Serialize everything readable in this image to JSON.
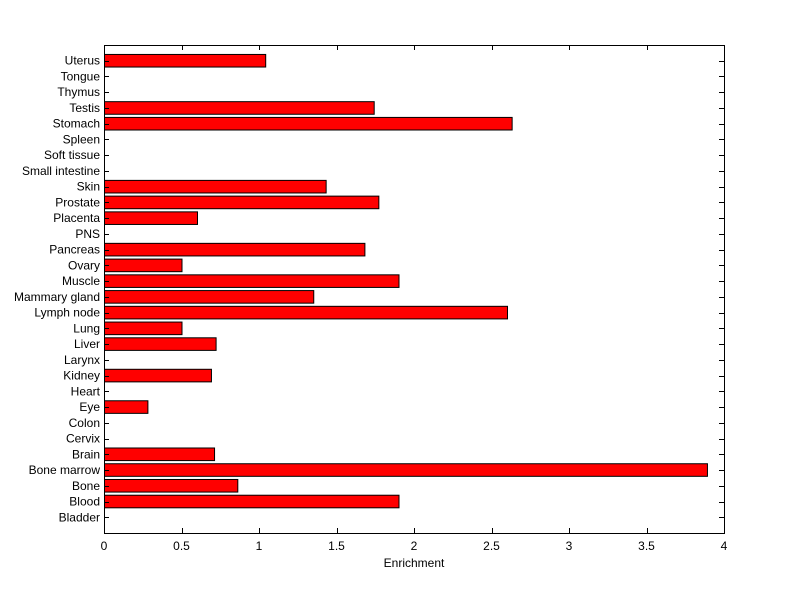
{
  "chart_data": {
    "type": "bar",
    "orientation": "horizontal",
    "title": "",
    "xlabel": "Enrichment",
    "ylabel": "",
    "xlim": [
      0,
      4
    ],
    "xticks": [
      "0",
      "0.5",
      "1",
      "1.5",
      "2",
      "2.5",
      "3",
      "3.5",
      "4"
    ],
    "grid": false,
    "bar_color": "#ff0000",
    "bar_edge_color": "#000000",
    "categories": [
      "Uterus",
      "Tongue",
      "Thymus",
      "Testis",
      "Stomach",
      "Spleen",
      "Soft tissue",
      "Small intestine",
      "Skin",
      "Prostate",
      "Placenta",
      "PNS",
      "Pancreas",
      "Ovary",
      "Muscle",
      "Mammary gland",
      "Lymph node",
      "Lung",
      "Liver",
      "Larynx",
      "Kidney",
      "Heart",
      "Eye",
      "Colon",
      "Cervix",
      "Brain",
      "Bone marrow",
      "Bone",
      "Blood",
      "Bladder"
    ],
    "values": [
      1.04,
      0,
      0,
      1.74,
      2.63,
      0,
      0,
      0,
      1.43,
      1.77,
      0.6,
      0,
      1.68,
      0.5,
      1.9,
      1.35,
      2.6,
      0.5,
      0.72,
      0,
      0.69,
      0,
      0.28,
      0,
      0,
      0.71,
      3.89,
      0.86,
      1.9,
      0
    ]
  }
}
